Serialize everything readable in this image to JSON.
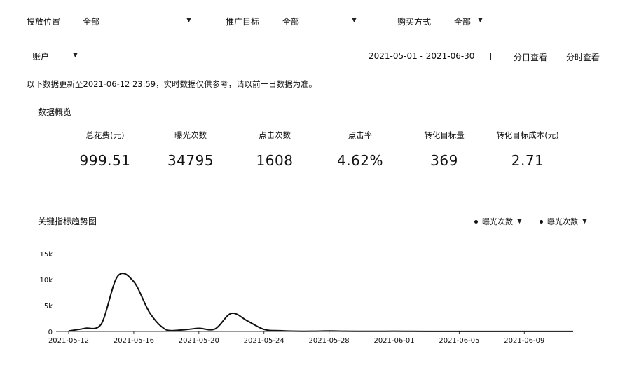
{
  "filters": {
    "placement": {
      "label": "投放位置",
      "value": "全部"
    },
    "promo_goal": {
      "label": "推广目标",
      "value": "全部"
    },
    "purchase_method": {
      "label": "购买方式",
      "value": "全部"
    },
    "account": {
      "label": "账户"
    }
  },
  "date_range": "2021-05-01 - 2021-06-30",
  "view_tabs": {
    "daily": "分日查看",
    "hourly": "分时查看"
  },
  "notice": "以下数据更新至2021-06-12 23:59，实时数据仅供参考，请以前一日数据为准。",
  "overview": {
    "title": "数据概览",
    "kpis": [
      {
        "label": "总花费(元)",
        "value": "999.51"
      },
      {
        "label": "曝光次数",
        "value": "34795"
      },
      {
        "label": "点击次数",
        "value": "1608"
      },
      {
        "label": "点击率",
        "value": "4.62%"
      },
      {
        "label": "转化目标量",
        "value": "369"
      },
      {
        "label": "转化目标成本(元)",
        "value": "2.71"
      }
    ]
  },
  "trend": {
    "title": "关键指标趋势图",
    "legend": [
      {
        "label": "曝光次数"
      },
      {
        "label": "曝光次数"
      }
    ]
  },
  "colors": {
    "line": "#111111",
    "axis": "#333333"
  },
  "chart_data": {
    "type": "line",
    "title": "关键指标趋势图",
    "xlabel": "",
    "ylabel": "",
    "ylim": [
      0,
      15000
    ],
    "y_ticks": [
      "0",
      "5k",
      "10k",
      "15k"
    ],
    "x_ticks": [
      "2021-05-12",
      "2021-05-16",
      "2021-05-20",
      "2021-05-24",
      "2021-05-28",
      "2021-06-01",
      "2021-06-05",
      "2021-06-09"
    ],
    "x": [
      "2021-05-12",
      "2021-05-13",
      "2021-05-14",
      "2021-05-15",
      "2021-05-16",
      "2021-05-17",
      "2021-05-18",
      "2021-05-19",
      "2021-05-20",
      "2021-05-21",
      "2021-05-22",
      "2021-05-23",
      "2021-05-24",
      "2021-05-25",
      "2021-05-26",
      "2021-05-27",
      "2021-05-28",
      "2021-05-29",
      "2021-05-30",
      "2021-05-31",
      "2021-06-01",
      "2021-06-02",
      "2021-06-03",
      "2021-06-04",
      "2021-06-05",
      "2021-06-06",
      "2021-06-07",
      "2021-06-08",
      "2021-06-09",
      "2021-06-10",
      "2021-06-11",
      "2021-06-12"
    ],
    "series": [
      {
        "name": "曝光次数",
        "values": [
          100,
          600,
          1400,
          10600,
          9600,
          3500,
          300,
          300,
          600,
          500,
          3500,
          2000,
          400,
          150,
          50,
          50,
          100,
          50,
          30,
          30,
          50,
          30,
          20,
          20,
          10,
          10,
          10,
          10,
          10,
          10,
          10,
          10
        ]
      }
    ],
    "grid": false,
    "legend_position": "top-right"
  }
}
